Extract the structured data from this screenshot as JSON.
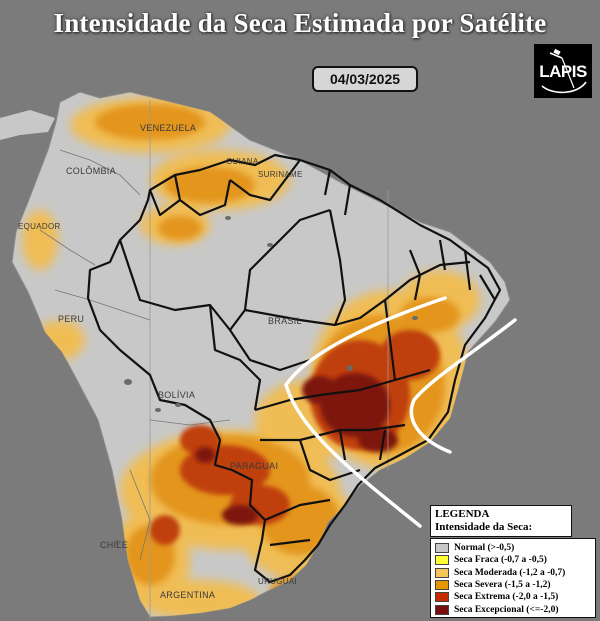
{
  "title": "Intensidade da Seca Estimada por Satélite",
  "date": "04/03/2025",
  "logo_text": "LAPIS",
  "country_labels": {
    "venezuela": "VENEZUELA",
    "colombia": "COLÔMBIA",
    "guiana": "GUIANA",
    "suriname": "SURINAME",
    "equador": "EQUADOR",
    "peru": "PERU",
    "brasil": "BRASIL",
    "bolivia": "BOLÍVIA",
    "paraguai": "PARAGUAI",
    "chile": "CHILE",
    "argentina": "ARGENTINA",
    "uruguai": "URUGUAI"
  },
  "legend": {
    "heading": "LEGENDA",
    "subtitle": "Intensidade da Seca:",
    "items": [
      {
        "label": "Normal (>-0,5)",
        "color": "#c8c8c8"
      },
      {
        "label": "Seca Fraca (-0,7 a -0,5)",
        "color": "#ffff33"
      },
      {
        "label": "Seca Moderada (-1,2 a -0,7)",
        "color": "#f5c45a"
      },
      {
        "label": "Seca Severa (-1,5 a -1,2)",
        "color": "#e59600"
      },
      {
        "label": "Seca Extrema (-2,0 a -1,5)",
        "color": "#c62a00"
      },
      {
        "label": "Seca Excepcional (<=-2,0)",
        "color": "#7a0d0d"
      }
    ]
  },
  "colors": {
    "ocean": "#7b7b7b",
    "land": "#c8c8c8",
    "moderate": "#f0bd55",
    "severe": "#e3951e",
    "extreme": "#c0400f",
    "exceptional": "#7d1410",
    "border": "#111111",
    "highlight": "#ffffff"
  }
}
